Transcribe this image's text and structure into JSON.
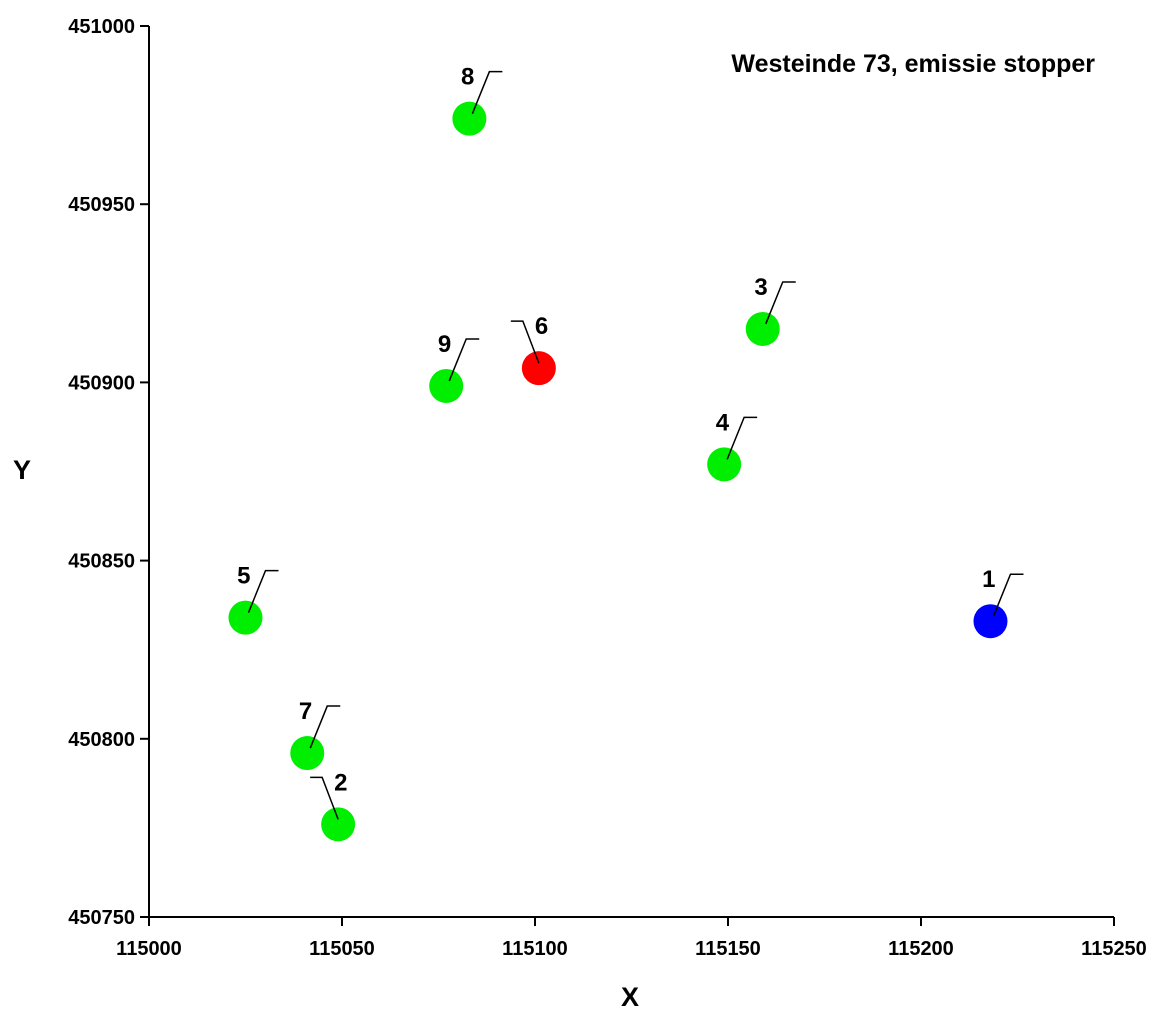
{
  "chart_data": {
    "type": "scatter",
    "title": "Westeinde 73, emissie stopper",
    "xlabel": "X",
    "ylabel": "Y",
    "xlim": [
      115000,
      115250
    ],
    "ylim": [
      450750,
      451000
    ],
    "x_ticks": [
      115000,
      115050,
      115100,
      115150,
      115200,
      115250
    ],
    "y_ticks": [
      450750,
      450800,
      450850,
      450900,
      450950,
      451000
    ],
    "grid": false,
    "points": [
      {
        "label": "1",
        "x": 115218,
        "y": 450833,
        "color": "#0000ff",
        "label_side": "right"
      },
      {
        "label": "2",
        "x": 115049,
        "y": 450776,
        "color": "#00ee00",
        "label_side": "left"
      },
      {
        "label": "3",
        "x": 115159,
        "y": 450915,
        "color": "#00ee00",
        "label_side": "right"
      },
      {
        "label": "4",
        "x": 115149,
        "y": 450877,
        "color": "#00ee00",
        "label_side": "right"
      },
      {
        "label": "5",
        "x": 115025,
        "y": 450834,
        "color": "#00ee00",
        "label_side": "right"
      },
      {
        "label": "6",
        "x": 115101,
        "y": 450904,
        "color": "#ff0000",
        "label_side": "left"
      },
      {
        "label": "7",
        "x": 115041,
        "y": 450796,
        "color": "#00ee00",
        "label_side": "right"
      },
      {
        "label": "8",
        "x": 115083,
        "y": 450974,
        "color": "#00ee00",
        "label_side": "right"
      },
      {
        "label": "9",
        "x": 115077,
        "y": 450899,
        "color": "#00ee00",
        "label_side": "right"
      }
    ]
  }
}
